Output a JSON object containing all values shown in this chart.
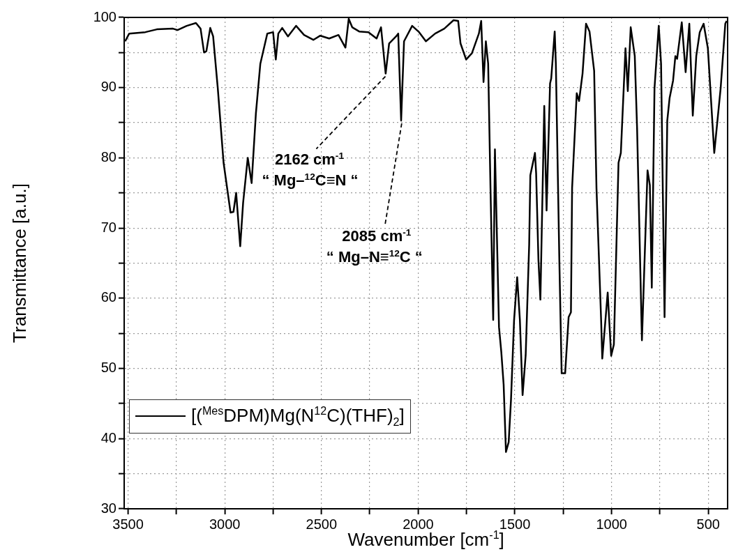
{
  "chart_data": {
    "type": "line",
    "xlabel": "Wavenumber [cm$^{-1}$]",
    "ylabel": "Transmittance [a.u.]",
    "xlim": [
      3520,
      400
    ],
    "ylim": [
      30,
      100
    ],
    "xticks": [
      3500,
      {
        "value": 3250,
        "label": null
      },
      3000,
      {
        "value": 2750,
        "label": null
      },
      2500,
      {
        "value": 2250,
        "label": null
      },
      2000,
      {
        "value": 1750,
        "label": null
      },
      1500,
      {
        "value": 1250,
        "label": null
      },
      1000,
      {
        "value": 750,
        "label": null
      },
      500
    ],
    "yticks": [
      30,
      {
        "value": 35,
        "label": null
      },
      40,
      {
        "value": 45,
        "label": null
      },
      50,
      {
        "value": 55,
        "label": null
      },
      60,
      {
        "value": 65,
        "label": null
      },
      70,
      {
        "value": 75,
        "label": null
      },
      80,
      {
        "value": 85,
        "label": null
      },
      90,
      {
        "value": 95,
        "label": null
      },
      100
    ],
    "grid": true,
    "legend": "bottom left",
    "marker": "none",
    "line_style": "solid",
    "x": [
      3515,
      3494,
      3411,
      3351,
      3268,
      3244,
      3197,
      3149,
      3125,
      3107,
      3095,
      3075,
      3060,
      3036,
      3006,
      2970,
      2955,
      2941,
      2920,
      2905,
      2881,
      2861,
      2839,
      2816,
      2780,
      2750,
      2736,
      2723,
      2703,
      2673,
      2631,
      2590,
      2542,
      2506,
      2460,
      2412,
      2376,
      2359,
      2341,
      2305,
      2257,
      2215,
      2192,
      2168,
      2150,
      2114,
      2103,
      2088,
      2073,
      2031,
      1995,
      1960,
      1912,
      1865,
      1817,
      1793,
      1781,
      1752,
      1722,
      1686,
      1674,
      1662,
      1650,
      1638,
      1626,
      1612,
      1603,
      1582,
      1570,
      1558,
      1546,
      1532,
      1520,
      1504,
      1488,
      1474,
      1460,
      1444,
      1426,
      1420,
      1396,
      1390,
      1378,
      1368,
      1348,
      1336,
      1318,
      1312,
      1294,
      1288,
      1270,
      1258,
      1240,
      1222,
      1210,
      1204,
      1180,
      1168,
      1150,
      1132,
      1114,
      1090,
      1078,
      1054,
      1048,
      1020,
      1002,
      988,
      964,
      952,
      928,
      916,
      901,
      880,
      868,
      843,
      814,
      802,
      792,
      778,
      756,
      744,
      726,
      712,
      700,
      682,
      670,
      661,
      637,
      617,
      598,
      580,
      562,
      544,
      524,
      502,
      469,
      436,
      412,
      405
    ],
    "series": [
      {
        "name": "[($^{Mes}$DPM)Mg(N$^{12}$C)(THF)$_{2}$]",
        "color": "#000000",
        "values": [
          96.6,
          97.7,
          97.9,
          98.3,
          98.4,
          98.2,
          98.8,
          99.2,
          98.4,
          95.0,
          95.2,
          98.5,
          97.3,
          89.9,
          79.3,
          72.2,
          72.3,
          75.0,
          67.4,
          73.6,
          80.0,
          76.4,
          86.3,
          93.4,
          97.7,
          97.9,
          94.0,
          97.7,
          98.5,
          97.3,
          98.8,
          97.5,
          96.8,
          97.4,
          97.0,
          97.5,
          95.7,
          99.8,
          98.6,
          98.0,
          97.9,
          97.0,
          98.6,
          92.0,
          96.3,
          97.3,
          97.7,
          85.3,
          96.6,
          98.8,
          97.9,
          96.6,
          97.7,
          98.4,
          99.6,
          99.5,
          96.3,
          94.0,
          94.9,
          97.7,
          99.5,
          90.8,
          96.6,
          93.4,
          75.7,
          56.9,
          81.2,
          55.9,
          52.3,
          47.7,
          38.1,
          39.5,
          45.5,
          56.9,
          63.0,
          56.9,
          46.2,
          51.9,
          67.6,
          77.5,
          80.7,
          77.8,
          65.4,
          59.8,
          87.4,
          72.5,
          90.6,
          91.3,
          98.0,
          93.4,
          65.4,
          49.3,
          49.3,
          57.3,
          58.0,
          75.7,
          89.2,
          88.1,
          92.0,
          99.1,
          98.0,
          92.4,
          75.7,
          56.9,
          51.4,
          60.8,
          51.8,
          53.4,
          79.3,
          80.7,
          95.6,
          89.5,
          98.6,
          94.5,
          84.2,
          54.0,
          78.2,
          76.1,
          61.5,
          89.9,
          98.8,
          93.4,
          57.3,
          85.3,
          88.5,
          91.0,
          94.5,
          94.1,
          99.3,
          92.2,
          99.1,
          86.0,
          94.5,
          97.9,
          99.1,
          95.6,
          80.7,
          89.9,
          99.1,
          99.5
        ]
      }
    ],
    "annotations": [
      {
        "text": "2162 cm$^{-1}$",
        "x": 2162,
        "y": 92.0
      },
      "“ Mg–$^{12}$C≡N “",
      {
        "text": "2085 cm$^{-1}$",
        "x": 2085,
        "y": 85.3
      },
      "“ Mg–N≡$^{12}$C “"
    ]
  }
}
